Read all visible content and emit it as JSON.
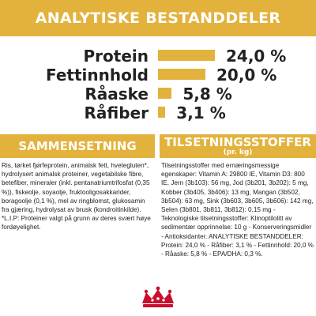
{
  "header": {
    "title": "ANALYTISKE BESTANDDELER"
  },
  "chart_data": {
    "type": "bar",
    "categories": [
      "Protein",
      "Fettinnhold",
      "Råaske",
      "Råfiber"
    ],
    "values": [
      24.0,
      20.0,
      5.8,
      3.1
    ],
    "value_labels": [
      "24,0 %",
      "20,0 %",
      "5,8 %",
      "3,1 %"
    ],
    "bar_color": "#e3b23c",
    "title": "ANALYTISKE BESTANDDELER"
  },
  "composition": {
    "title": "SAMMENSETNING",
    "text": "Ris, tørket fjørfeprotein, animalsk fett, hvetegluten*, hydrolysert animalsk proteiner, vegetabilske fibre, betefiber, mineraler (inkl. pentanatriumtrifosfat (0,35 %)), fiskeolje, soyaolje, fruktooligosakkarider, boragoolje (0,1 %), mel av ringblomst, glukosamin fra gjæring, hydrolysat av brusk (kondroitinkilde). *L.I.P: Proteiner valgt på grunn av deres svært høye fordøyelighet."
  },
  "additives": {
    "title": "TILSETNINGSSTOFFER",
    "subtitle": "(pr. kg)",
    "text": "Tilsetningsstoffer med ernæringsmessige egenskaper: Vitamin A: 29800 IE, Vitamin D3: 800 IE, Jern (3b103): 56 mg, Jod (3b201, 3b202): 5 mg, Kobber (3b405, 3b406): 13 mg, Mangan (3b502, 3b504): 63 mg, Sink (3b603, 3b605, 3b606): 142 mg, Selen (3b801, 3b811, 3b812): 0,15 mg - Teknologiske tilsetningsstoffer: Klinoptilolitt av sedimentær opprinnelse: 10 g - Konserveringsmidler - Antioksidanter. ANALYTISKE BESTANDDELER: Protein: 24,0 % - Råfiber: 3,1 % - Fettinnhold: 20,0 % - Råaske: 5,8 % - EPA/DHA: 0,3 %."
  },
  "brand": {
    "logo_name": "royal-canin-crown-logo",
    "color": "#c8102e"
  }
}
